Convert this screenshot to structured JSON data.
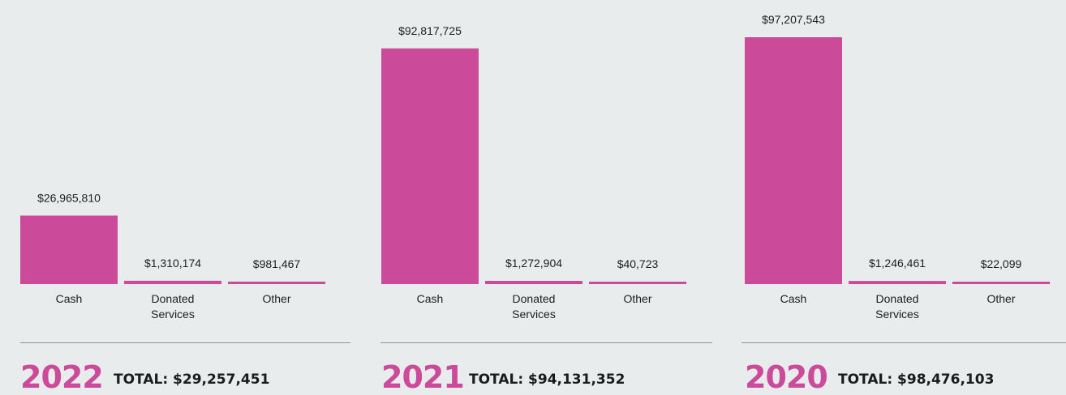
{
  "colors": {
    "bar": "#cc4a9a",
    "year": "#cc4a9a",
    "text": "#1e1e1e",
    "background": "#e9ecec"
  },
  "chart_data": [
    {
      "type": "bar",
      "year_label": "2022",
      "total_label": "TOTAL: $29,257,451",
      "categories": [
        [
          "Cash"
        ],
        [
          "Donated",
          "Services"
        ],
        [
          "Other"
        ]
      ],
      "values": [
        26965810,
        1310174,
        981467
      ],
      "value_labels": [
        "$26,965,810",
        "$1,310,174",
        "$981,467"
      ],
      "ylim": [
        0,
        97207543
      ]
    },
    {
      "type": "bar",
      "year_label": "2021",
      "total_label": "TOTAL: $94,131,352",
      "categories": [
        [
          "Cash"
        ],
        [
          "Donated",
          "Services"
        ],
        [
          "Other"
        ]
      ],
      "values": [
        92817725,
        1272904,
        40723
      ],
      "value_labels": [
        "$92,817,725",
        "$1,272,904",
        "$40,723"
      ],
      "ylim": [
        0,
        97207543
      ]
    },
    {
      "type": "bar",
      "year_label": "2020",
      "total_label": "TOTAL: $98,476,103",
      "categories": [
        [
          "Cash"
        ],
        [
          "Donated",
          "Services"
        ],
        [
          "Other"
        ]
      ],
      "values": [
        97207543,
        1246461,
        22099
      ],
      "value_labels": [
        "$97,207,543",
        "$1,246,461",
        "$22,099"
      ],
      "ylim": [
        0,
        97207543
      ]
    }
  ]
}
